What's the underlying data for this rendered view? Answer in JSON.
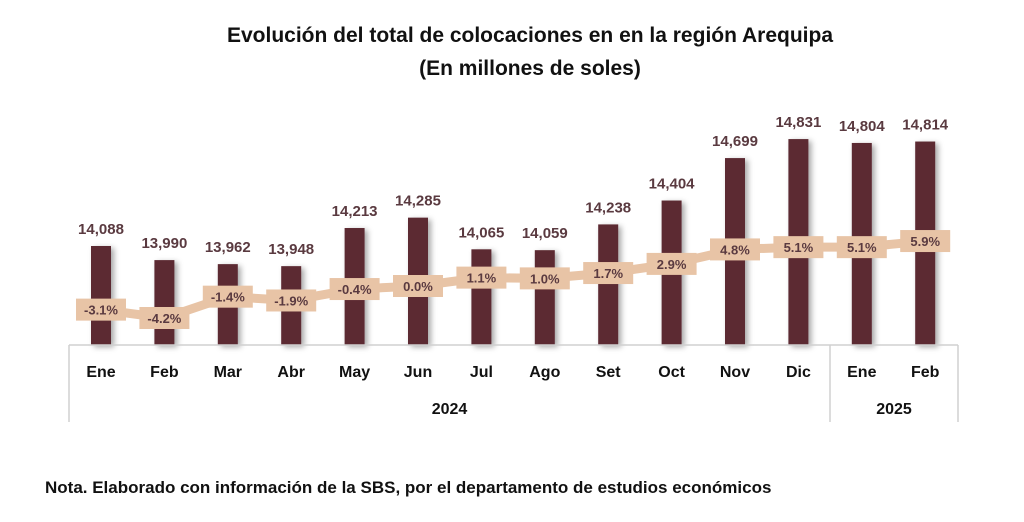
{
  "chart_data": {
    "type": "bar",
    "title": "Evolución del total de colocaciones en en la región Arequipa",
    "subtitle": "(En millones de soles)",
    "categories": [
      "Ene",
      "Feb",
      "Mar",
      "Abr",
      "May",
      "Jun",
      "Jul",
      "Ago",
      "Set",
      "Oct",
      "Nov",
      "Dic",
      "Ene",
      "Feb"
    ],
    "groups": [
      {
        "label": "2024",
        "count": 12
      },
      {
        "label": "2025",
        "count": 2
      }
    ],
    "series": [
      {
        "type": "bar",
        "values": [
          14088,
          13990,
          13962,
          13948,
          14213,
          14285,
          14065,
          14059,
          14238,
          14404,
          14699,
          14831,
          14804,
          14814
        ],
        "labels": [
          "14,088",
          "13,990",
          "13,962",
          "13,948",
          "14,213",
          "14,285",
          "14,065",
          "14,059",
          "14,238",
          "14,404",
          "14,699",
          "14,831",
          "14,804",
          "14,814"
        ],
        "color": "#5c2a33"
      },
      {
        "type": "line",
        "values": [
          -3.1,
          -4.2,
          -1.4,
          -1.9,
          -0.4,
          0.0,
          1.1,
          1.0,
          1.7,
          2.9,
          4.8,
          5.1,
          5.1,
          5.9
        ],
        "labels": [
          "-3.1%",
          "-4.2%",
          "-1.4%",
          "-1.9%",
          "-0.4%",
          "0.0%",
          "1.1%",
          "1.0%",
          "1.7%",
          "2.9%",
          "4.8%",
          "5.1%",
          "5.1%",
          "5.9%"
        ],
        "color": "#e8c4a6"
      }
    ],
    "grid": false,
    "legend": "none"
  },
  "note": "Nota. Elaborado con información de la SBS, por el departamento de estudios económicos"
}
